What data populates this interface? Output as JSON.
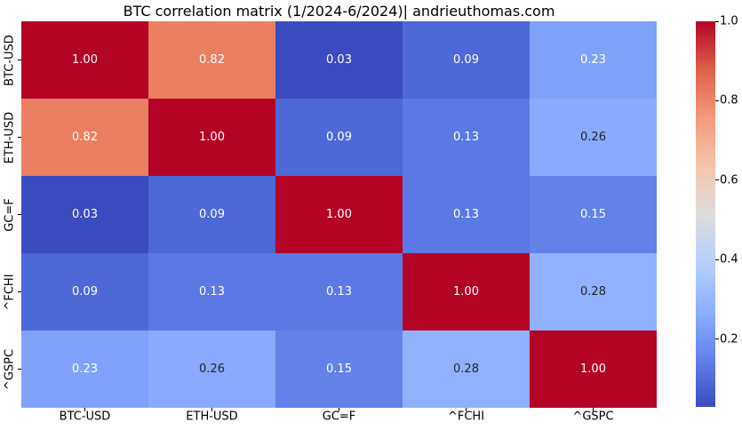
{
  "chart_data": {
    "type": "heatmap",
    "title": "BTC correlation matrix (1/2024-6/2024)| andrieuthomas.com",
    "categories": [
      "BTC-USD",
      "ETH-USD",
      "GC=F",
      "^FCHI",
      "^GSPC"
    ],
    "matrix": [
      [
        1.0,
        0.82,
        0.03,
        0.09,
        0.23
      ],
      [
        0.82,
        1.0,
        0.09,
        0.13,
        0.26
      ],
      [
        0.03,
        0.09,
        1.0,
        0.13,
        0.15
      ],
      [
        0.09,
        0.13,
        0.13,
        1.0,
        0.28
      ],
      [
        0.23,
        0.26,
        0.15,
        0.28,
        1.0
      ]
    ],
    "annotation_format": "0.00",
    "grid": false,
    "colormap": {
      "name": "coolwarm",
      "vmin": 0.03,
      "vmax": 1.0,
      "gradient_stops_bottom_to_top": [
        "#3b4cc0",
        "#6282ea",
        "#8db0fe",
        "#b8d0f9",
        "#dddddd",
        "#f5c4ad",
        "#f49a7b",
        "#de604d",
        "#b40426"
      ]
    },
    "colorbar": {
      "position": "right",
      "ticks": [
        {
          "label": "1.0",
          "value": 1.0
        },
        {
          "label": "0.8",
          "value": 0.8
        },
        {
          "label": "0.6",
          "value": 0.6
        },
        {
          "label": "0.4",
          "value": 0.4
        },
        {
          "label": "0.2",
          "value": 0.2
        }
      ]
    },
    "cell_styles": {
      "1.00": {
        "bg": "#b40426",
        "text": "#ffffff"
      },
      "0.82": {
        "bg": "#ec7e62",
        "text": "#ffffff"
      },
      "0.03": {
        "bg": "#3b4cc0",
        "text": "#ffffff"
      },
      "0.09": {
        "bg": "#4d68d7",
        "text": "#ffffff"
      },
      "0.13": {
        "bg": "#5a79e4",
        "text": "#ffffff"
      },
      "0.15": {
        "bg": "#6282ea",
        "text": "#ffffff"
      },
      "0.23": {
        "bg": "#7ea1f9",
        "text": "#ffffff"
      },
      "0.26": {
        "bg": "#88abfd",
        "text": "#262626"
      },
      "0.28": {
        "bg": "#90b2fe",
        "text": "#262626"
      }
    },
    "annotation_text_colors": {
      "on_dark": "#ffffff",
      "on_light": "#262626"
    }
  }
}
